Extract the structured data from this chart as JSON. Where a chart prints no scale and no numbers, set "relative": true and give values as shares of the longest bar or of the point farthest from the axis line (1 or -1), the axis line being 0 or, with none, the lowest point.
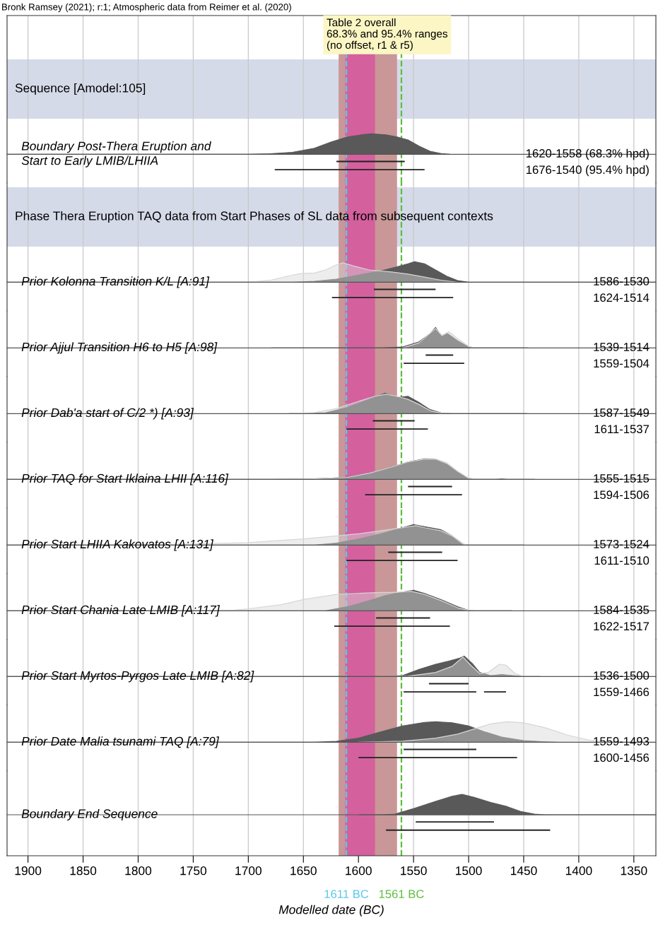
{
  "chart_data": [
    {
      "type": "other",
      "title": "Bronk Ramsey (2021); r:1; Atmospheric data from Reimer et al. (2020)",
      "annotations": [
        "Table 2 overall\n68.3% and 95.4% ranges\n(no offset, r1 & r5)"
      ]
    },
    {
      "type": "area",
      "relative": true,
      "title": "Boundary Post-Thera Eruption and\nStart to Early LMIB/LHIIA",
      "subtitle": "Sequence [Amodel:105]",
      "xlim": [
        1919,
        1330
      ],
      "xticks": [
        1900,
        1850,
        1800,
        1750,
        1700,
        1650,
        1600,
        1550,
        1500,
        1450,
        1400,
        1350
      ],
      "grid": "x",
      "tick_labels": false,
      "bands": [
        {
          "axis": "x",
          "from": 1618,
          "to": 1565,
          "color": "#c99797"
        },
        {
          "axis": "x",
          "from": 1612,
          "to": 1585,
          "color": "#d4609e"
        }
      ],
      "ref_lines": [
        {
          "axis": "x",
          "value": 1611,
          "color": "#5bc8e8",
          "line_style": "dashed"
        },
        {
          "axis": "x",
          "value": 1561,
          "color": "#5cbf3f",
          "line_style": "dashed"
        }
      ],
      "annotations": [
        "1620-1558 (68.3% hpd)",
        "1676-1540 (95.4% hpd)"
      ],
      "series": [
        {
          "color": "#595959",
          "x": [
            1919,
            1700,
            1680,
            1660,
            1640,
            1625,
            1610,
            1595,
            1588,
            1575,
            1565,
            1555,
            1545,
            1535,
            1525,
            1517
          ],
          "values": [
            0,
            0,
            0.03,
            0.1,
            0.3,
            0.6,
            0.85,
            0.97,
            1,
            0.95,
            0.85,
            0.7,
            0.4,
            0.15,
            0.04,
            0
          ]
        },
        {
          "type": "line",
          "color": "#222222",
          "x": [
            1620,
            1558
          ],
          "values": [
            -0.35,
            -0.35
          ]
        },
        {
          "type": "line",
          "color": "#222222",
          "x": [
            1676,
            1540
          ],
          "values": [
            -0.75,
            -0.75
          ]
        }
      ]
    },
    {
      "type": "area",
      "relative": true,
      "title": "Prior Kolonna Transition K/L [A:91]",
      "subtitle": "Phase Thera Eruption TAQ data from Start Phases of SL data from subsequent contexts",
      "xlim": [
        1919,
        1330
      ],
      "xticks": [
        1900,
        1850,
        1800,
        1750,
        1700,
        1650,
        1600,
        1550,
        1500,
        1450,
        1400,
        1350
      ],
      "grid": "x",
      "tick_labels": false,
      "bands": [
        {
          "axis": "x",
          "from": 1618,
          "to": 1565,
          "color": "#c99797"
        },
        {
          "axis": "x",
          "from": 1612,
          "to": 1585,
          "color": "#d4609e"
        }
      ],
      "ref_lines": [
        {
          "axis": "x",
          "value": 1611,
          "color": "#5bc8e8",
          "line_style": "dashed"
        },
        {
          "axis": "x",
          "value": 1561,
          "color": "#5cbf3f",
          "line_style": "dashed"
        }
      ],
      "annotations": [
        "1586-1530",
        "1624-1514"
      ],
      "series": [
        {
          "color": "#d6d6d6",
          "x": [
            1700,
            1680,
            1660,
            1652,
            1640,
            1630,
            1620,
            1614,
            1605,
            1590,
            1570,
            1555,
            1540,
            1525,
            1511
          ],
          "values": [
            0,
            0.1,
            0.35,
            0.42,
            0.45,
            0.6,
            0.85,
            0.95,
            0.8,
            0.6,
            0.5,
            0.4,
            0.25,
            0.1,
            0
          ]
        },
        {
          "color": "#595959",
          "x": [
            1919,
            1660,
            1640,
            1620,
            1600,
            1580,
            1565,
            1555,
            1549,
            1540,
            1530,
            1520,
            1510,
            1500,
            1330
          ],
          "values": [
            0,
            0,
            0.05,
            0.15,
            0.35,
            0.55,
            0.75,
            0.9,
            1,
            0.9,
            0.6,
            0.3,
            0.08,
            0,
            0
          ]
        },
        {
          "type": "line",
          "color": "#222222",
          "x": [
            1586,
            1530
          ],
          "values": [
            -0.35,
            -0.35
          ]
        },
        {
          "type": "line",
          "color": "#222222",
          "x": [
            1624,
            1514
          ],
          "values": [
            -0.75,
            -0.75
          ]
        }
      ]
    },
    {
      "type": "area",
      "relative": true,
      "title": "Prior Ajjul Transition H6 to H5 [A:98]",
      "xlim": [
        1919,
        1330
      ],
      "xticks": [
        1900,
        1850,
        1800,
        1750,
        1700,
        1650,
        1600,
        1550,
        1500,
        1450,
        1400,
        1350
      ],
      "grid": "x",
      "tick_labels": false,
      "bands": [
        {
          "axis": "x",
          "from": 1618,
          "to": 1565,
          "color": "#c99797"
        },
        {
          "axis": "x",
          "from": 1612,
          "to": 1585,
          "color": "#d4609e"
        }
      ],
      "ref_lines": [
        {
          "axis": "x",
          "value": 1611,
          "color": "#5bc8e8",
          "line_style": "dashed"
        },
        {
          "axis": "x",
          "value": 1561,
          "color": "#5cbf3f",
          "line_style": "dashed"
        }
      ],
      "annotations": [
        "1539-1514",
        "1559-1504"
      ],
      "series": [
        {
          "color": "#d6d6d6",
          "x": [
            1560,
            1545,
            1530,
            1524,
            1518,
            1510,
            1500,
            1494
          ],
          "values": [
            0,
            0.25,
            0.95,
            0.6,
            0.8,
            0.45,
            0.08,
            0
          ]
        },
        {
          "color": "#595959",
          "x": [
            1679,
            1580,
            1560,
            1545,
            1535,
            1530,
            1525,
            1519,
            1510,
            1500,
            1495,
            1446
          ],
          "values": [
            0,
            0,
            0.05,
            0.3,
            0.7,
            1,
            0.6,
            0.7,
            0.35,
            0.05,
            0,
            0
          ]
        },
        {
          "type": "line",
          "color": "#222222",
          "x": [
            1539,
            1514
          ],
          "values": [
            -0.35,
            -0.35
          ]
        },
        {
          "type": "line",
          "color": "#222222",
          "x": [
            1559,
            1504
          ],
          "values": [
            -0.75,
            -0.75
          ]
        }
      ]
    },
    {
      "type": "area",
      "relative": true,
      "title": "Prior Dab'a start of C/2 *) [A:93]",
      "xlim": [
        1919,
        1330
      ],
      "xticks": [
        1900,
        1850,
        1800,
        1750,
        1700,
        1650,
        1600,
        1550,
        1500,
        1450,
        1400,
        1350
      ],
      "grid": "x",
      "tick_labels": false,
      "bands": [
        {
          "axis": "x",
          "from": 1618,
          "to": 1565,
          "color": "#c99797"
        },
        {
          "axis": "x",
          "from": 1612,
          "to": 1585,
          "color": "#d4609e"
        }
      ],
      "ref_lines": [
        {
          "axis": "x",
          "value": 1611,
          "color": "#5bc8e8",
          "line_style": "dashed"
        },
        {
          "axis": "x",
          "value": 1561,
          "color": "#5cbf3f",
          "line_style": "dashed"
        }
      ],
      "annotations": [
        "1587-1549",
        "1611-1537"
      ],
      "series": [
        {
          "color": "#d6d6d6",
          "x": [
            1663,
            1640,
            1620,
            1600,
            1585,
            1575,
            1565,
            1555,
            1545,
            1535,
            1525,
            1515
          ],
          "values": [
            0,
            0.05,
            0.25,
            0.6,
            0.85,
            0.95,
            0.85,
            0.7,
            0.45,
            0.15,
            0.03,
            0
          ]
        },
        {
          "color": "#595959",
          "x": [
            1663,
            1650,
            1630,
            1610,
            1595,
            1576,
            1565,
            1555,
            1545,
            1535,
            1525,
            1515,
            1447
          ],
          "values": [
            0,
            0,
            0.05,
            0.3,
            0.6,
            1,
            0.8,
            0.85,
            0.55,
            0.2,
            0.04,
            0,
            0
          ]
        },
        {
          "type": "line",
          "color": "#222222",
          "x": [
            1587,
            1549
          ],
          "values": [
            -0.35,
            -0.35
          ]
        },
        {
          "type": "line",
          "color": "#222222",
          "x": [
            1611,
            1537
          ],
          "values": [
            -0.75,
            -0.75
          ]
        }
      ]
    },
    {
      "type": "area",
      "relative": true,
      "title": "Prior TAQ for Start Iklaina LHII [A:116]",
      "xlim": [
        1919,
        1330
      ],
      "xticks": [
        1900,
        1850,
        1800,
        1750,
        1700,
        1650,
        1600,
        1550,
        1500,
        1450,
        1400,
        1350
      ],
      "grid": "x",
      "tick_labels": false,
      "bands": [
        {
          "axis": "x",
          "from": 1618,
          "to": 1565,
          "color": "#c99797"
        },
        {
          "axis": "x",
          "from": 1612,
          "to": 1585,
          "color": "#d4609e"
        }
      ],
      "ref_lines": [
        {
          "axis": "x",
          "value": 1611,
          "color": "#5bc8e8",
          "line_style": "dashed"
        },
        {
          "axis": "x",
          "value": 1561,
          "color": "#5cbf3f",
          "line_style": "dashed"
        }
      ],
      "annotations": [
        "1555-1515",
        "1594-1506"
      ],
      "series": [
        {
          "color": "#d6d6d6",
          "x": [
            1680,
            1640,
            1610,
            1590,
            1570,
            1555,
            1540,
            1530,
            1520,
            1510,
            1500,
            1491
          ],
          "values": [
            0,
            0.03,
            0.1,
            0.3,
            0.6,
            0.85,
            0.98,
            1,
            0.82,
            0.4,
            0.06,
            0
          ]
        },
        {
          "color": "#595959",
          "x": [
            1919,
            1680,
            1640,
            1610,
            1590,
            1570,
            1555,
            1540,
            1532,
            1520,
            1510,
            1500,
            1492,
            1475,
            1470,
            1465,
            1440
          ],
          "values": [
            0,
            0,
            0.03,
            0.1,
            0.3,
            0.6,
            0.85,
            1,
            1,
            0.75,
            0.35,
            0.05,
            0,
            0,
            0.02,
            0,
            0
          ]
        },
        {
          "type": "line",
          "color": "#222222",
          "x": [
            1555,
            1515
          ],
          "values": [
            -0.35,
            -0.35
          ]
        },
        {
          "type": "line",
          "color": "#222222",
          "x": [
            1594,
            1506
          ],
          "values": [
            -0.75,
            -0.75
          ]
        }
      ]
    },
    {
      "type": "area",
      "relative": true,
      "title": "Prior Start LHIIA Kakovatos [A:131]",
      "xlim": [
        1919,
        1330
      ],
      "xticks": [
        1900,
        1850,
        1800,
        1750,
        1700,
        1650,
        1600,
        1550,
        1500,
        1450,
        1400,
        1350
      ],
      "grid": "x",
      "tick_labels": false,
      "bands": [
        {
          "axis": "x",
          "from": 1618,
          "to": 1565,
          "color": "#c99797"
        },
        {
          "axis": "x",
          "from": 1612,
          "to": 1585,
          "color": "#d4609e"
        }
      ],
      "ref_lines": [
        {
          "axis": "x",
          "value": 1611,
          "color": "#5bc8e8",
          "line_style": "dashed"
        },
        {
          "axis": "x",
          "value": 1561,
          "color": "#5cbf3f",
          "line_style": "dashed"
        }
      ],
      "annotations": [
        "1573-1524",
        "1611-1510"
      ],
      "series": [
        {
          "color": "#d6d6d6",
          "x": [
            1850,
            1750,
            1700,
            1650,
            1620,
            1600,
            1580,
            1560,
            1548,
            1540,
            1525,
            1515,
            1505,
            1500
          ],
          "values": [
            0,
            0.05,
            0.12,
            0.3,
            0.45,
            0.55,
            0.7,
            0.85,
            0.95,
            0.85,
            0.7,
            0.45,
            0.05,
            0
          ]
        },
        {
          "color": "#595959",
          "x": [
            1919,
            1640,
            1620,
            1600,
            1580,
            1560,
            1550,
            1540,
            1525,
            1515,
            1505,
            1500,
            1450
          ],
          "values": [
            0,
            0,
            0.1,
            0.3,
            0.55,
            0.85,
            1,
            0.9,
            0.75,
            0.45,
            0.05,
            0,
            0
          ]
        },
        {
          "type": "line",
          "color": "#222222",
          "x": [
            1573,
            1524
          ],
          "values": [
            -0.35,
            -0.35
          ]
        },
        {
          "type": "line",
          "color": "#222222",
          "x": [
            1611,
            1510
          ],
          "values": [
            -0.75,
            -0.75
          ]
        }
      ]
    },
    {
      "type": "area",
      "relative": true,
      "title": "Prior Start Chania Late LMIB [A:117]",
      "xlim": [
        1919,
        1330
      ],
      "xticks": [
        1900,
        1850,
        1800,
        1750,
        1700,
        1650,
        1600,
        1550,
        1500,
        1450,
        1400,
        1350
      ],
      "grid": "x",
      "tick_labels": false,
      "bands": [
        {
          "axis": "x",
          "from": 1618,
          "to": 1565,
          "color": "#c99797"
        },
        {
          "axis": "x",
          "from": 1612,
          "to": 1585,
          "color": "#d4609e"
        }
      ],
      "ref_lines": [
        {
          "axis": "x",
          "value": 1611,
          "color": "#5bc8e8",
          "line_style": "dashed"
        },
        {
          "axis": "x",
          "value": 1561,
          "color": "#5cbf3f",
          "line_style": "dashed"
        }
      ],
      "annotations": [
        "1584-1535",
        "1622-1517"
      ],
      "series": [
        {
          "color": "#d6d6d6",
          "x": [
            1720,
            1700,
            1670,
            1650,
            1620,
            1600,
            1580,
            1570,
            1552,
            1540,
            1525,
            1510,
            1500,
            1495
          ],
          "values": [
            0,
            0.1,
            0.3,
            0.55,
            0.8,
            0.85,
            0.9,
            0.9,
            0.95,
            0.8,
            0.5,
            0.15,
            0.02,
            0
          ]
        },
        {
          "color": "#595959",
          "x": [
            1919,
            1630,
            1610,
            1590,
            1575,
            1560,
            1550,
            1540,
            1525,
            1510,
            1500,
            1495,
            1461
          ],
          "values": [
            0,
            0,
            0.2,
            0.5,
            0.75,
            0.92,
            1,
            0.85,
            0.55,
            0.2,
            0.02,
            0,
            0
          ]
        },
        {
          "type": "line",
          "color": "#222222",
          "x": [
            1584,
            1535
          ],
          "values": [
            -0.35,
            -0.35
          ]
        },
        {
          "type": "line",
          "color": "#222222",
          "x": [
            1622,
            1517
          ],
          "values": [
            -0.75,
            -0.75
          ]
        }
      ]
    },
    {
      "type": "area",
      "relative": true,
      "title": "Prior Start Myrtos-Pyrgos Late LMIB [A:82]",
      "xlim": [
        1919,
        1330
      ],
      "xticks": [
        1900,
        1850,
        1800,
        1750,
        1700,
        1650,
        1600,
        1550,
        1500,
        1450,
        1400,
        1350
      ],
      "grid": "x",
      "tick_labels": false,
      "bands": [
        {
          "axis": "x",
          "from": 1618,
          "to": 1565,
          "color": "#c99797"
        },
        {
          "axis": "x",
          "from": 1612,
          "to": 1585,
          "color": "#d4609e"
        }
      ],
      "ref_lines": [
        {
          "axis": "x",
          "value": 1611,
          "color": "#5bc8e8",
          "line_style": "dashed"
        },
        {
          "axis": "x",
          "value": 1561,
          "color": "#5cbf3f",
          "line_style": "dashed"
        }
      ],
      "annotations": [
        "1536-1500",
        "1559-1466"
      ],
      "series": [
        {
          "color": "#d6d6d6",
          "x": [
            1580,
            1555,
            1530,
            1515,
            1505,
            1498,
            1490,
            1482,
            1472,
            1466,
            1458,
            1450
          ],
          "values": [
            0,
            0.02,
            0.2,
            0.5,
            0.95,
            0.55,
            0.15,
            0.2,
            0.6,
            0.55,
            0.15,
            0
          ]
        },
        {
          "color": "#595959",
          "x": [
            1919,
            1580,
            1560,
            1545,
            1530,
            1518,
            1508,
            1504,
            1496,
            1490,
            1480,
            1470,
            1460,
            1450,
            1435
          ],
          "values": [
            0,
            0,
            0.05,
            0.35,
            0.6,
            0.75,
            0.9,
            1,
            0.6,
            0.2,
            0.05,
            0.1,
            0.05,
            0,
            0
          ]
        },
        {
          "type": "line",
          "color": "#222222",
          "x": [
            1536,
            1500
          ],
          "values": [
            -0.35,
            -0.35
          ]
        },
        {
          "type": "line",
          "color": "#222222",
          "x": [
            1559,
            1493
          ],
          "values": [
            -0.75,
            -0.75
          ]
        },
        {
          "type": "line",
          "color": "#222222",
          "x": [
            1486,
            1466
          ],
          "values": [
            -0.75,
            -0.75
          ]
        }
      ]
    },
    {
      "type": "area",
      "relative": true,
      "title": "Prior Date Malia tsunami TAQ [A:79]",
      "xlim": [
        1919,
        1330
      ],
      "xticks": [
        1900,
        1850,
        1800,
        1750,
        1700,
        1650,
        1600,
        1550,
        1500,
        1450,
        1400,
        1350
      ],
      "grid": "x",
      "tick_labels": false,
      "bands": [
        {
          "axis": "x",
          "from": 1618,
          "to": 1565,
          "color": "#c99797"
        },
        {
          "axis": "x",
          "from": 1612,
          "to": 1585,
          "color": "#d4609e"
        }
      ],
      "ref_lines": [
        {
          "axis": "x",
          "value": 1611,
          "color": "#5bc8e8",
          "line_style": "dashed"
        },
        {
          "axis": "x",
          "value": 1561,
          "color": "#5cbf3f",
          "line_style": "dashed"
        }
      ],
      "annotations": [
        "1559-1493",
        "1600-1456"
      ],
      "series": [
        {
          "color": "#d6d6d6",
          "x": [
            1600,
            1560,
            1530,
            1510,
            1495,
            1480,
            1465,
            1450,
            1430,
            1410,
            1390,
            1370,
            1350,
            1330
          ],
          "values": [
            0,
            0.05,
            0.2,
            0.4,
            0.65,
            0.9,
            1,
            0.95,
            0.7,
            0.35,
            0.1,
            0.02,
            0,
            0
          ]
        },
        {
          "color": "#595959",
          "x": [
            1919,
            1640,
            1620,
            1600,
            1580,
            1560,
            1540,
            1530,
            1515,
            1500,
            1485,
            1470,
            1450,
            1430,
            1420
          ],
          "values": [
            0,
            0,
            0.05,
            0.2,
            0.5,
            0.8,
            0.97,
            1,
            0.95,
            0.8,
            0.5,
            0.25,
            0.08,
            0.02,
            0
          ]
        },
        {
          "type": "line",
          "color": "#222222",
          "x": [
            1559,
            1493
          ],
          "values": [
            -0.35,
            -0.35
          ]
        },
        {
          "type": "line",
          "color": "#222222",
          "x": [
            1600,
            1456
          ],
          "values": [
            -0.75,
            -0.75
          ]
        }
      ]
    },
    {
      "type": "area",
      "relative": true,
      "title": "Boundary End Sequence",
      "xlabel": "Modelled date (BC)",
      "xlim": [
        1919,
        1330
      ],
      "xticks": [
        1900,
        1850,
        1800,
        1750,
        1700,
        1650,
        1600,
        1550,
        1500,
        1450,
        1400,
        1350
      ],
      "grid": "x",
      "tick_labels": "x",
      "bands": [
        {
          "axis": "x",
          "from": 1618,
          "to": 1565,
          "color": "#c99797"
        },
        {
          "axis": "x",
          "from": 1612,
          "to": 1585,
          "color": "#d4609e"
        }
      ],
      "ref_lines": [
        {
          "axis": "x",
          "value": 1611,
          "color": "#5bc8e8",
          "line_style": "dashed",
          "label": "1611 BC"
        },
        {
          "axis": "x",
          "value": 1561,
          "color": "#5cbf3f",
          "line_style": "dashed",
          "label": "1561 BC"
        }
      ],
      "series": [
        {
          "color": "#595959",
          "x": [
            1599,
            1580,
            1567,
            1550,
            1530,
            1515,
            1506,
            1495,
            1480,
            1465,
            1452,
            1440,
            1430,
            1330
          ],
          "values": [
            0,
            0,
            0.03,
            0.3,
            0.65,
            0.9,
            1,
            0.85,
            0.6,
            0.4,
            0.15,
            0.03,
            0,
            0
          ]
        },
        {
          "type": "line",
          "color": "#222222",
          "x": [
            1548,
            1477
          ],
          "values": [
            -0.35,
            -0.35
          ]
        },
        {
          "type": "line",
          "color": "#222222",
          "x": [
            1575,
            1426
          ],
          "values": [
            -0.75,
            -0.75
          ]
        }
      ]
    }
  ]
}
